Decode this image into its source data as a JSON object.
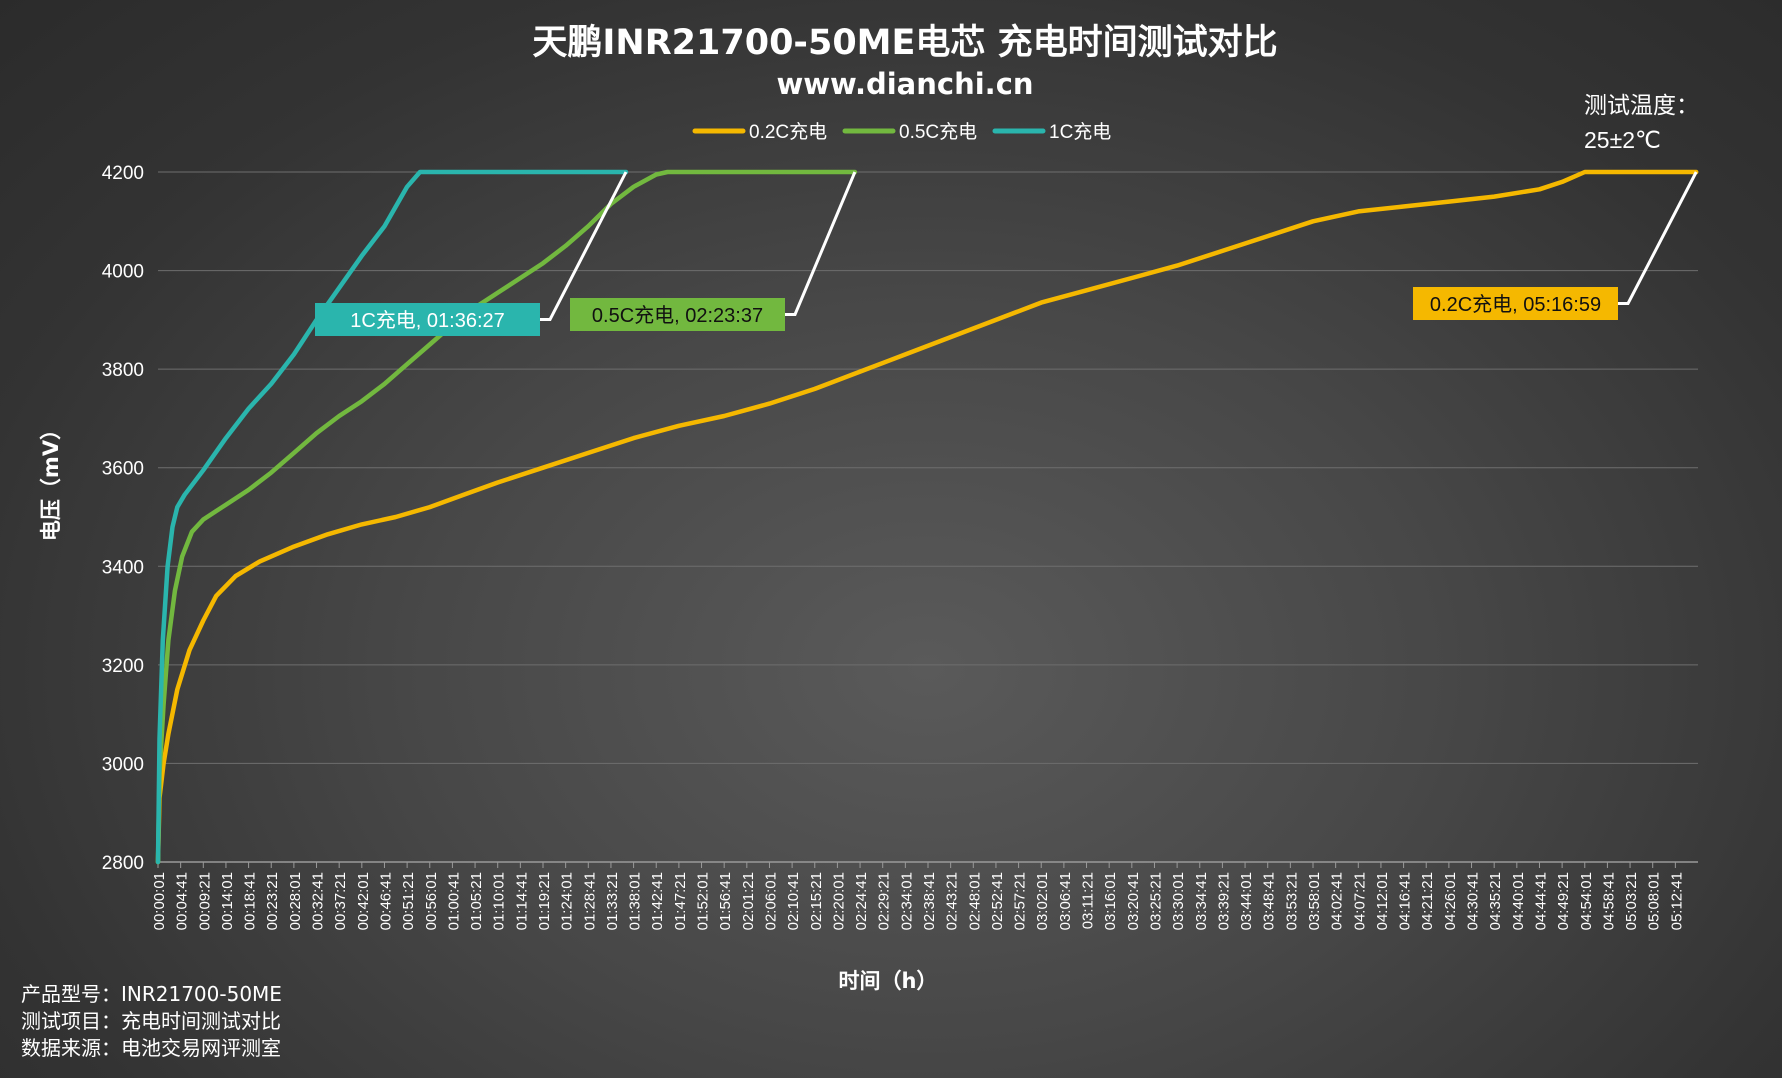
{
  "chart_data": {
    "type": "line",
    "title": "天鹏INR21700-50ME电芯 充电时间测试对比",
    "subtitle": "www.dianchi.cn",
    "xlabel": "时间（h）",
    "ylabel": "电压（mV）",
    "ylim": [
      2800,
      4200
    ],
    "yticks": [
      2800,
      3000,
      3200,
      3400,
      3600,
      3800,
      4000,
      4200
    ],
    "x_unit": "h:mm:ss",
    "xticks": [
      "00:00:01",
      "00:04:41",
      "00:09:21",
      "00:14:01",
      "00:18:41",
      "00:23:21",
      "00:28:01",
      "00:32:41",
      "00:37:21",
      "00:42:01",
      "00:46:41",
      "00:51:21",
      "00:56:01",
      "01:00:41",
      "01:05:21",
      "01:10:01",
      "01:14:41",
      "01:19:21",
      "01:24:01",
      "01:28:41",
      "01:33:21",
      "01:38:01",
      "01:42:41",
      "01:47:21",
      "01:52:01",
      "01:56:41",
      "02:01:21",
      "02:06:01",
      "02:10:41",
      "02:15:21",
      "02:20:01",
      "02:24:41",
      "02:29:21",
      "02:34:01",
      "02:38:41",
      "02:43:21",
      "02:48:01",
      "02:52:41",
      "02:57:21",
      "03:02:01",
      "03:06:41",
      "03:11:21",
      "03:16:01",
      "03:20:41",
      "03:25:21",
      "03:30:01",
      "03:34:41",
      "03:39:21",
      "03:44:01",
      "03:48:41",
      "03:53:21",
      "03:58:01",
      "04:02:41",
      "04:07:21",
      "04:12:01",
      "04:16:41",
      "04:21:21",
      "04:26:01",
      "04:30:41",
      "04:35:21",
      "04:40:01",
      "04:44:41",
      "04:49:21",
      "04:54:01",
      "04:58:41",
      "05:03:21",
      "05:08:01",
      "05:12:41"
    ],
    "grid": true,
    "legend_position": "top-center",
    "series": [
      {
        "name": "0.2C充电",
        "color": "#f5b800",
        "end_label": "0.2C充电, 05:16:59",
        "points": [
          [
            "00:00:01",
            2800
          ],
          [
            "00:00:20",
            2930
          ],
          [
            "00:01:10",
            3000
          ],
          [
            "00:02:10",
            3060
          ],
          [
            "00:04:00",
            3150
          ],
          [
            "00:06:30",
            3230
          ],
          [
            "00:09:21",
            3290
          ],
          [
            "00:12:00",
            3340
          ],
          [
            "00:16:00",
            3380
          ],
          [
            "00:21:00",
            3410
          ],
          [
            "00:28:01",
            3440
          ],
          [
            "00:35:00",
            3465
          ],
          [
            "00:42:01",
            3485
          ],
          [
            "00:49:00",
            3500
          ],
          [
            "00:56:01",
            3520
          ],
          [
            "01:03:00",
            3545
          ],
          [
            "01:10:01",
            3570
          ],
          [
            "01:19:21",
            3600
          ],
          [
            "01:28:41",
            3630
          ],
          [
            "01:38:01",
            3660
          ],
          [
            "01:47:21",
            3685
          ],
          [
            "01:56:41",
            3705
          ],
          [
            "02:06:01",
            3730
          ],
          [
            "02:15:21",
            3760
          ],
          [
            "02:24:41",
            3795
          ],
          [
            "02:34:01",
            3830
          ],
          [
            "02:43:21",
            3865
          ],
          [
            "02:52:41",
            3900
          ],
          [
            "03:02:01",
            3935
          ],
          [
            "03:11:21",
            3960
          ],
          [
            "03:20:41",
            3985
          ],
          [
            "03:30:01",
            4010
          ],
          [
            "03:39:21",
            4040
          ],
          [
            "03:48:41",
            4070
          ],
          [
            "03:58:01",
            4100
          ],
          [
            "04:07:21",
            4120
          ],
          [
            "04:16:41",
            4130
          ],
          [
            "04:26:01",
            4140
          ],
          [
            "04:35:21",
            4150
          ],
          [
            "04:44:41",
            4165
          ],
          [
            "04:49:21",
            4180
          ],
          [
            "04:54:01",
            4200
          ],
          [
            "05:16:59",
            4200
          ]
        ]
      },
      {
        "name": "0.5C充电",
        "color": "#72b83f",
        "end_label": "0.5C充电, 02:23:37",
        "points": [
          [
            "00:00:01",
            2800
          ],
          [
            "00:00:20",
            2980
          ],
          [
            "00:01:10",
            3120
          ],
          [
            "00:02:10",
            3250
          ],
          [
            "00:03:30",
            3350
          ],
          [
            "00:05:00",
            3420
          ],
          [
            "00:07:00",
            3470
          ],
          [
            "00:09:21",
            3495
          ],
          [
            "00:14:01",
            3525
          ],
          [
            "00:18:41",
            3555
          ],
          [
            "00:23:21",
            3590
          ],
          [
            "00:28:01",
            3630
          ],
          [
            "00:32:41",
            3670
          ],
          [
            "00:37:21",
            3705
          ],
          [
            "00:42:01",
            3735
          ],
          [
            "00:46:41",
            3770
          ],
          [
            "00:51:21",
            3810
          ],
          [
            "00:56:01",
            3850
          ],
          [
            "01:00:41",
            3890
          ],
          [
            "01:05:21",
            3925
          ],
          [
            "01:10:01",
            3955
          ],
          [
            "01:14:41",
            3985
          ],
          [
            "01:19:21",
            4015
          ],
          [
            "01:24:01",
            4050
          ],
          [
            "01:28:41",
            4090
          ],
          [
            "01:33:21",
            4135
          ],
          [
            "01:38:01",
            4170
          ],
          [
            "01:42:41",
            4195
          ],
          [
            "01:45:00",
            4200
          ],
          [
            "02:23:37",
            4200
          ]
        ]
      },
      {
        "name": "1C充电",
        "color": "#2ab5ad",
        "end_label": "1C充电, 01:36:27",
        "points": [
          [
            "00:00:01",
            2800
          ],
          [
            "00:00:20",
            3050
          ],
          [
            "00:01:00",
            3250
          ],
          [
            "00:02:00",
            3400
          ],
          [
            "00:03:00",
            3480
          ],
          [
            "00:04:00",
            3520
          ],
          [
            "00:05:30",
            3545
          ],
          [
            "00:09:21",
            3595
          ],
          [
            "00:14:01",
            3660
          ],
          [
            "00:18:41",
            3720
          ],
          [
            "00:23:21",
            3770
          ],
          [
            "00:28:01",
            3830
          ],
          [
            "00:32:41",
            3900
          ],
          [
            "00:37:21",
            3965
          ],
          [
            "00:42:01",
            4030
          ],
          [
            "00:46:41",
            4090
          ],
          [
            "00:51:21",
            4170
          ],
          [
            "00:54:00",
            4200
          ],
          [
            "01:36:27",
            4200
          ]
        ]
      }
    ]
  },
  "note": {
    "line1": "测试温度：",
    "line2": "25±2℃"
  },
  "footer": {
    "line1": "产品型号：INR21700-50ME",
    "line2": "测试项目：充电时间测试对比",
    "line3": "数据来源：电池交易网评测室"
  }
}
